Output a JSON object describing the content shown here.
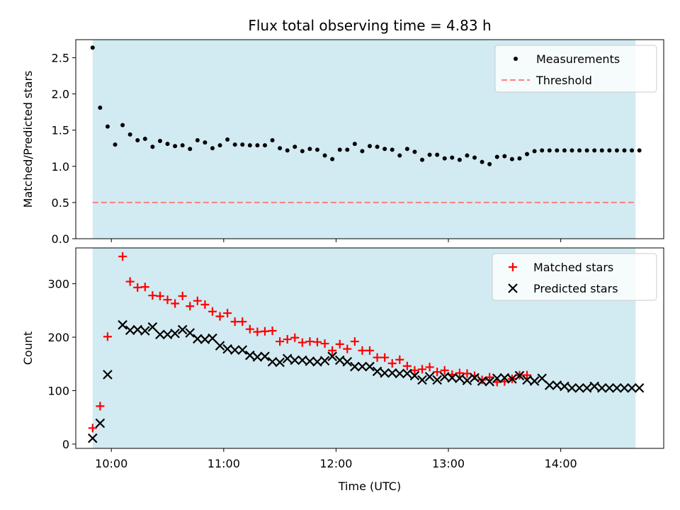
{
  "title": "Flux total observing time = 4.83 h",
  "colors": {
    "shade": "#add8e6",
    "measurements": "#000000",
    "threshold": "#ff7f7f",
    "matched": "#ff0000",
    "predicted": "#000000"
  },
  "chart_data": [
    {
      "type": "scatter",
      "ylabel": "Matched/Predicted stars",
      "xlim": [
        "09:41",
        "14:55"
      ],
      "ylim": [
        0,
        2.75
      ],
      "yticks": [
        0.0,
        0.5,
        1.0,
        1.5,
        2.0,
        2.5
      ],
      "ytick_labels": [
        "0.0",
        "0.5",
        "1.0",
        "1.5",
        "2.0",
        "2.5"
      ],
      "shaded_span": [
        "09:50",
        "14:40"
      ],
      "legend": {
        "position": "top-right",
        "entries": [
          "Measurements",
          "Threshold"
        ]
      },
      "threshold": {
        "name": "Threshold",
        "y": 0.5,
        "style": "dashed"
      },
      "series": [
        {
          "name": "Measurements",
          "marker": "dot",
          "x": [
            "09:50",
            "09:54",
            "09:58",
            "10:02",
            "10:06",
            "10:10",
            "10:14",
            "10:18",
            "10:22",
            "10:26",
            "10:30",
            "10:34",
            "10:38",
            "10:42",
            "10:46",
            "10:50",
            "10:54",
            "10:58",
            "11:02",
            "11:06",
            "11:10",
            "11:14",
            "11:18",
            "11:22",
            "11:26",
            "11:30",
            "11:34",
            "11:38",
            "11:42",
            "11:46",
            "11:50",
            "11:54",
            "11:58",
            "12:02",
            "12:06",
            "12:10",
            "12:14",
            "12:18",
            "12:22",
            "12:26",
            "12:30",
            "12:34",
            "12:38",
            "12:42",
            "12:46",
            "12:50",
            "12:54",
            "12:58",
            "13:02",
            "13:06",
            "13:10",
            "13:14",
            "13:18",
            "13:22",
            "13:26",
            "13:30",
            "13:34",
            "13:38",
            "13:42",
            "13:46",
            "13:50",
            "13:54",
            "13:58",
            "14:02",
            "14:06",
            "14:10",
            "14:14",
            "14:18",
            "14:22",
            "14:26",
            "14:30",
            "14:34",
            "14:38",
            "14:42"
          ],
          "y": [
            2.64,
            1.81,
            1.55,
            1.3,
            1.57,
            1.44,
            1.36,
            1.38,
            1.27,
            1.35,
            1.31,
            1.28,
            1.29,
            1.24,
            1.36,
            1.33,
            1.25,
            1.29,
            1.37,
            1.3,
            1.3,
            1.29,
            1.29,
            1.29,
            1.36,
            1.25,
            1.22,
            1.27,
            1.21,
            1.24,
            1.23,
            1.15,
            1.1,
            1.23,
            1.23,
            1.31,
            1.21,
            1.28,
            1.27,
            1.24,
            1.23,
            1.15,
            1.24,
            1.2,
            1.09,
            1.16,
            1.16,
            1.11,
            1.12,
            1.09,
            1.15,
            1.12,
            1.06,
            1.03,
            1.13,
            1.14,
            1.1,
            1.11,
            1.17,
            1.21,
            1.22,
            1.22,
            1.22,
            1.22,
            1.22,
            1.22,
            1.22,
            1.22,
            1.22,
            1.22,
            1.22,
            1.22,
            1.22,
            1.22
          ]
        }
      ]
    },
    {
      "type": "scatter",
      "xlabel": "Time (UTC)",
      "ylabel": "Count",
      "xlim": [
        "09:41",
        "14:55"
      ],
      "ylim": [
        -8,
        367
      ],
      "yticks": [
        0,
        100,
        200,
        300
      ],
      "ytick_labels": [
        "0",
        "100",
        "200",
        "300"
      ],
      "xticks": [
        "10:00",
        "11:00",
        "12:00",
        "13:00",
        "14:00"
      ],
      "xtick_labels": [
        "10:00",
        "11:00",
        "12:00",
        "13:00",
        "14:00"
      ],
      "shaded_span": [
        "09:50",
        "14:40"
      ],
      "legend": {
        "position": "top-right",
        "entries": [
          "Matched stars",
          "Predicted stars"
        ]
      },
      "series": [
        {
          "name": "Matched stars",
          "marker": "plus",
          "x": [
            "09:50",
            "09:54",
            "09:58",
            "10:06",
            "10:10",
            "10:14",
            "10:18",
            "10:22",
            "10:26",
            "10:30",
            "10:34",
            "10:38",
            "10:42",
            "10:46",
            "10:50",
            "10:54",
            "10:58",
            "11:02",
            "11:06",
            "11:10",
            "11:14",
            "11:18",
            "11:22",
            "11:26",
            "11:30",
            "11:34",
            "11:38",
            "11:42",
            "11:46",
            "11:50",
            "11:54",
            "11:58",
            "12:02",
            "12:06",
            "12:10",
            "12:14",
            "12:18",
            "12:22",
            "12:26",
            "12:30",
            "12:34",
            "12:38",
            "12:42",
            "12:46",
            "12:50",
            "12:54",
            "12:58",
            "13:02",
            "13:06",
            "13:10",
            "13:14",
            "13:18",
            "13:22",
            "13:26",
            "13:30",
            "13:34",
            "13:38",
            "13:42"
          ],
          "y": [
            30,
            71,
            201,
            351,
            304,
            293,
            294,
            278,
            277,
            270,
            263,
            277,
            258,
            268,
            261,
            248,
            239,
            245,
            229,
            229,
            215,
            210,
            211,
            212,
            192,
            196,
            199,
            190,
            192,
            191,
            188,
            175,
            187,
            178,
            192,
            175,
            175,
            162,
            162,
            151,
            158,
            146,
            138,
            140,
            144,
            135,
            138,
            130,
            133,
            132,
            128,
            120,
            125,
            116,
            117,
            122,
            129,
            129
          ]
        },
        {
          "name": "Predicted stars",
          "marker": "x",
          "x": [
            "09:50",
            "09:54",
            "09:58",
            "10:06",
            "10:10",
            "10:14",
            "10:18",
            "10:22",
            "10:26",
            "10:30",
            "10:34",
            "10:38",
            "10:42",
            "10:46",
            "10:50",
            "10:54",
            "10:58",
            "11:02",
            "11:06",
            "11:10",
            "11:14",
            "11:18",
            "11:22",
            "11:26",
            "11:30",
            "11:34",
            "11:38",
            "11:42",
            "11:46",
            "11:50",
            "11:54",
            "11:58",
            "12:02",
            "12:06",
            "12:10",
            "12:14",
            "12:18",
            "12:22",
            "12:26",
            "12:30",
            "12:34",
            "12:38",
            "12:42",
            "12:46",
            "12:50",
            "12:54",
            "12:58",
            "13:02",
            "13:06",
            "13:10",
            "13:14",
            "13:18",
            "13:22",
            "13:26",
            "13:30",
            "13:34",
            "13:38",
            "13:42",
            "13:46",
            "13:50",
            "13:54",
            "13:58",
            "14:02",
            "14:06",
            "14:10",
            "14:14",
            "14:18",
            "14:22",
            "14:26",
            "14:30",
            "14:34",
            "14:38",
            "14:42"
          ],
          "y": [
            11,
            39,
            130,
            223,
            213,
            214,
            212,
            219,
            205,
            205,
            207,
            214,
            208,
            197,
            196,
            198,
            184,
            178,
            176,
            176,
            166,
            163,
            164,
            154,
            153,
            160,
            157,
            157,
            155,
            154,
            156,
            164,
            157,
            154,
            145,
            145,
            145,
            136,
            133,
            133,
            132,
            132,
            128,
            120,
            126,
            120,
            126,
            124,
            123,
            119,
            124,
            118,
            117,
            123,
            124,
            122,
            128,
            120,
            118,
            123,
            110,
            110,
            108,
            105,
            105,
            105,
            108,
            105,
            105,
            105,
            105,
            105,
            105
          ]
        }
      ]
    }
  ]
}
